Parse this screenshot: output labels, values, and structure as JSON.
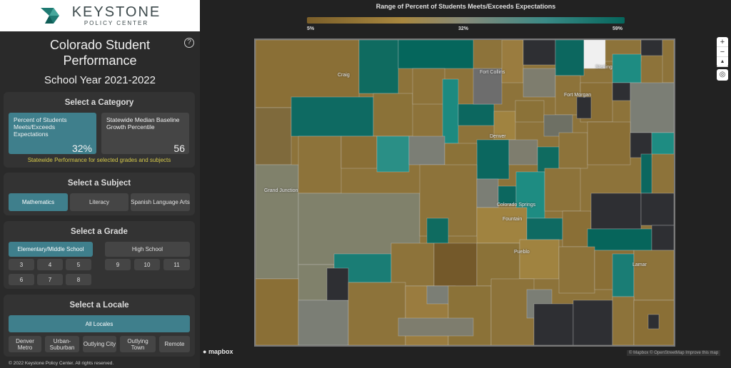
{
  "logo": {
    "name": "KEYSTONE",
    "sub": "POLICY CENTER"
  },
  "title_line1": "Colorado Student",
  "title_line2": "Performance",
  "school_year": "School Year 2021-2022",
  "help_label": "?",
  "category": {
    "title": "Select a Category",
    "cards": [
      {
        "label": "Percent of Students Meets/Exceeds Expectations",
        "value": "32%"
      },
      {
        "label": "Statewide Median Baseline Growth Percentile",
        "value": "56"
      }
    ],
    "note": "Statewide Performance for selected grades and subjects"
  },
  "subject": {
    "title": "Select a Subject",
    "buttons": [
      "Mathematics",
      "Literacy",
      "Spanish Language Arts"
    ]
  },
  "grade": {
    "title": "Select a Grade",
    "levels": [
      "Elementary/Middle School",
      "High School"
    ],
    "elem_grades": [
      "3",
      "4",
      "5",
      "6",
      "7",
      "8"
    ],
    "high_grades": [
      "9",
      "10",
      "11"
    ]
  },
  "locale": {
    "title": "Select a Locale",
    "all": "All Locales",
    "options": [
      "Denver Metro",
      "Urban-Suburban",
      "Outlying City",
      "Outlying Town",
      "Remote"
    ]
  },
  "footer": "© 2022 Keystone Policy Center. All rights reserved.",
  "legend": {
    "title": "Range of Percent of Students Meets/Exceeds Expectations",
    "min": "5%",
    "mid": "32%",
    "max": "59%"
  },
  "map": {
    "cities": [
      "Craig",
      "Fort Collins",
      "Sterling",
      "Fort Morgan",
      "Denver",
      "Grand Junction",
      "Colorado Springs",
      "Fountain",
      "Pueblo",
      "Lamar"
    ],
    "zoom_in": "+",
    "zoom_out": "−",
    "compass": "▲",
    "locate": "◎",
    "mapbox": "mapbox",
    "attribution": "© Mapbox © OpenStreetMap Improve this map"
  }
}
